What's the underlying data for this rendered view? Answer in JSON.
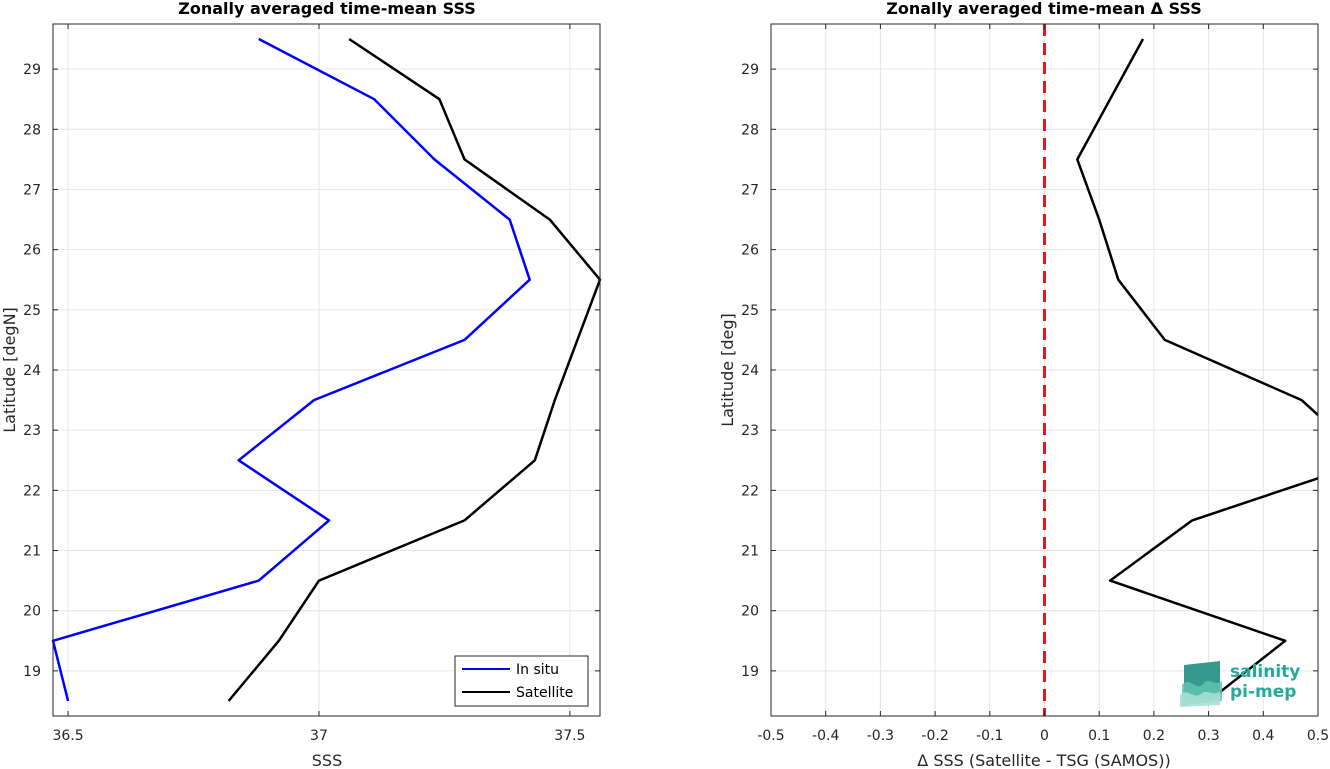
{
  "chart_data": [
    {
      "type": "line",
      "title": "Zonally averaged time-mean SSS",
      "xlabel": "SSS",
      "ylabel": "Latitude [degN]",
      "xlim": [
        36.47,
        37.56
      ],
      "ylim": [
        18.25,
        29.75
      ],
      "xticks": [
        36.5,
        37,
        37.5
      ],
      "yticks": [
        19,
        20,
        21,
        22,
        23,
        24,
        25,
        26,
        27,
        28,
        29
      ],
      "grid": true,
      "legend": "bottom-right",
      "series": [
        {
          "name": "In situ",
          "color": "#0000ff",
          "x": [
            36.5,
            36.47,
            36.88,
            37.02,
            36.84,
            36.99,
            37.29,
            37.42,
            37.38,
            37.23,
            37.11,
            36.88
          ],
          "y": [
            18.5,
            19.5,
            20.5,
            21.5,
            22.5,
            23.5,
            24.5,
            25.5,
            26.5,
            27.5,
            28.5,
            29.5
          ]
        },
        {
          "name": "Satellite",
          "color": "#000000",
          "x": [
            36.82,
            36.92,
            37.0,
            37.29,
            37.43,
            37.47,
            37.56,
            37.46,
            37.29,
            37.24,
            37.06
          ],
          "y": [
            18.5,
            19.5,
            20.5,
            21.5,
            22.5,
            23.5,
            25.5,
            26.5,
            27.5,
            28.5,
            29.5
          ]
        }
      ]
    },
    {
      "type": "line",
      "title": "Zonally averaged time-mean Δ SSS",
      "xlabel": "Δ SSS (Satellite - TSG (SAMOS))",
      "ylabel": "Latitude [deg]",
      "xlim": [
        -0.5,
        0.5
      ],
      "ylim": [
        18.25,
        29.75
      ],
      "xticks": [
        -0.5,
        -0.4,
        -0.3,
        -0.2,
        -0.1,
        0,
        0.1,
        0.2,
        0.3,
        0.4,
        0.5
      ],
      "yticks": [
        19,
        20,
        21,
        22,
        23,
        24,
        25,
        26,
        27,
        28,
        29
      ],
      "grid": true,
      "reference_line": {
        "x": 0,
        "color": "#e31a1c",
        "style": "dashed"
      },
      "series": [
        {
          "color": "#000000",
          "x": [
            0.3,
            0.44,
            0.12,
            0.27,
            0.5,
            null,
            0.5,
            0.47,
            0.22,
            0.135,
            0.1,
            0.06,
            0.12,
            0.18
          ],
          "y": [
            18.5,
            19.5,
            20.5,
            21.5,
            22.2,
            null,
            23.25,
            23.5,
            24.5,
            25.5,
            26.5,
            27.5,
            28.5,
            29.5
          ]
        }
      ]
    }
  ],
  "logo": {
    "line1": "salinity",
    "line2": "pi-mep",
    "color": "#27a99a"
  }
}
